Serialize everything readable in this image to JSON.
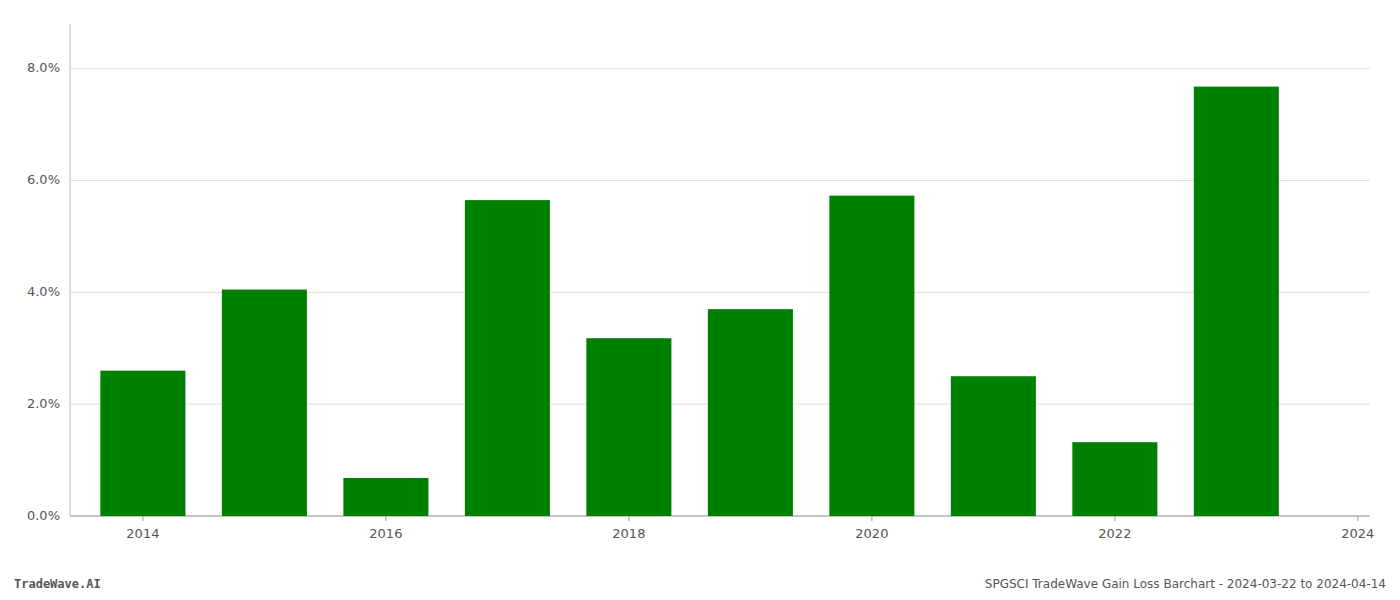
{
  "chart_data": {
    "type": "bar",
    "x": [
      2014,
      2015,
      2016,
      2017,
      2018,
      2019,
      2020,
      2021,
      2022,
      2023
    ],
    "values": [
      0.026,
      0.0405,
      0.0068,
      0.0565,
      0.0318,
      0.037,
      0.0573,
      0.025,
      0.0132,
      0.0768
    ],
    "color": "#008000",
    "xlim": [
      2013.4,
      2024.1
    ],
    "xticks": [
      2014,
      2016,
      2018,
      2020,
      2022,
      2024
    ],
    "ylim": [
      0,
      0.088
    ],
    "yticks": [
      {
        "value": 0.0,
        "label": "0.0%"
      },
      {
        "value": 0.02,
        "label": "2.0%"
      },
      {
        "value": 0.04,
        "label": "4.0%"
      },
      {
        "value": 0.06,
        "label": "6.0%"
      },
      {
        "value": 0.08,
        "label": "8.0%"
      }
    ],
    "grid": true,
    "annotations": [
      "TradeWave.AI",
      "SPGSCI TradeWave Gain Loss Barchart - 2024-03-22 to 2024-04-14"
    ]
  }
}
